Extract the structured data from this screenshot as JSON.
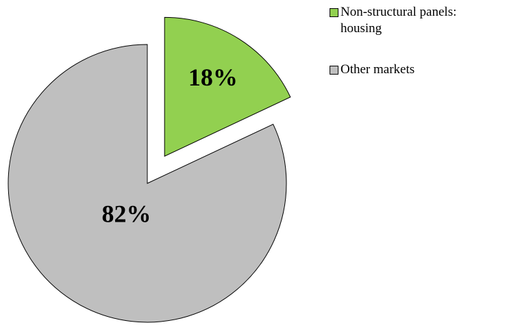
{
  "chart_data": {
    "type": "pie",
    "categories": [
      "Non-structural panels: housing",
      "Other markets"
    ],
    "values": [
      18,
      82
    ],
    "value_labels": [
      "18%",
      "82%"
    ],
    "colors": [
      "#92d050",
      "#bfbfbf"
    ]
  }
}
